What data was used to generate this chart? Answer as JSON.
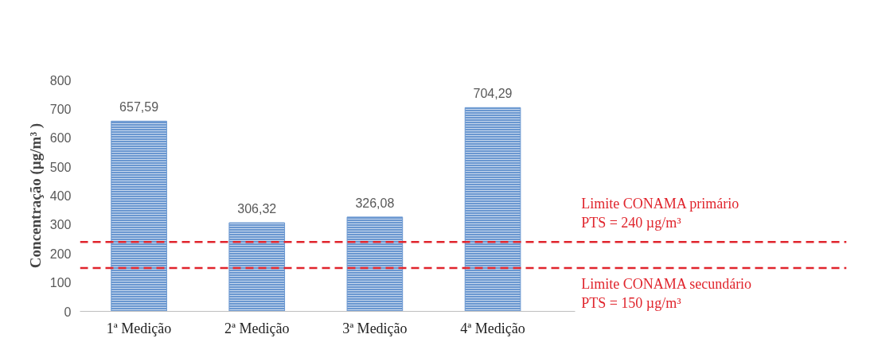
{
  "chart_data": {
    "type": "bar",
    "ylabel": "Concentração (µg/m³ )",
    "categories": [
      "1ª Medição",
      "2ª Medição",
      "3ª Medição",
      "4ª Medição"
    ],
    "values": [
      657.59,
      306.32,
      326.08,
      704.29
    ],
    "value_labels": [
      "657,59",
      "306,32",
      "326,08",
      "704,29"
    ],
    "color": "#6a97d0",
    "ylim": [
      0,
      800
    ],
    "yticks": [
      0,
      100,
      200,
      300,
      400,
      500,
      600,
      700,
      800
    ],
    "ref_lines": [
      {
        "axis": "y",
        "value": 240,
        "label": "Limite CONAMA  primário\nPTS = 240 µg/m³",
        "color": "#e0242c",
        "line_style": "dashed"
      },
      {
        "axis": "y",
        "value": 150,
        "label": "Limite CONAMA  secundário\nPTS = 150 µg/m³",
        "color": "#e0242c",
        "line_style": "dashed"
      }
    ],
    "grid": false
  }
}
